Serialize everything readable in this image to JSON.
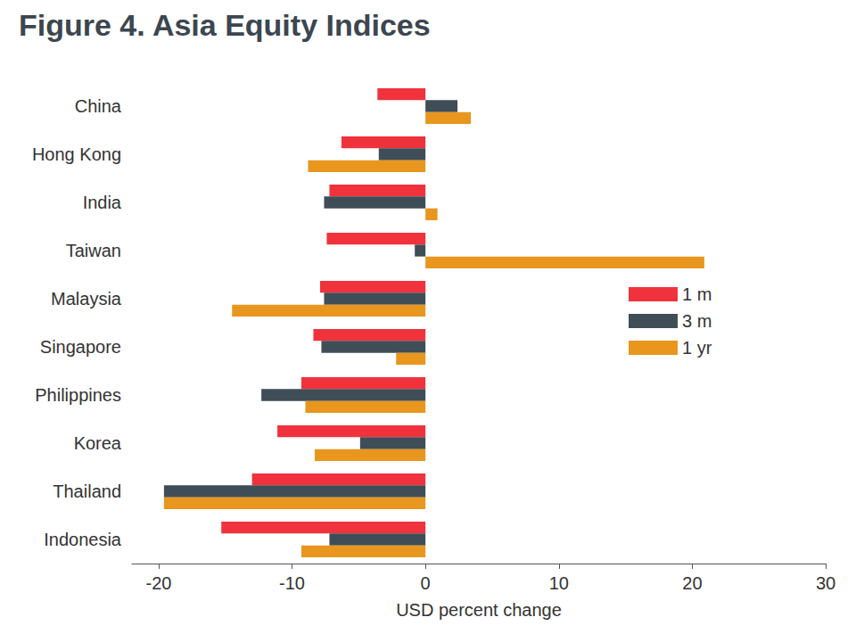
{
  "chart_data": {
    "type": "bar",
    "title": "Figure 4. Asia Equity Indices",
    "orientation": "horizontal",
    "categories": [
      "China",
      "Hong Kong",
      "India",
      "Taiwan",
      "Malaysia",
      "Singapore",
      "Philippines",
      "Korea",
      "Thailand",
      "Indonesia"
    ],
    "series": [
      {
        "name": "1 m",
        "color": "#f0323c",
        "values": [
          -3.6,
          -6.3,
          -7.2,
          -7.4,
          -7.9,
          -8.4,
          -9.3,
          -11.1,
          -13.0,
          -15.3
        ]
      },
      {
        "name": "3 m",
        "color": "#3f4d57",
        "values": [
          2.4,
          -3.5,
          -7.6,
          -0.8,
          -7.6,
          -7.8,
          -12.3,
          -4.9,
          -19.6,
          -7.2
        ]
      },
      {
        "name": "1 yr",
        "color": "#e8961e",
        "values": [
          3.4,
          -8.8,
          0.9,
          20.9,
          -14.5,
          -2.2,
          -9.0,
          -8.3,
          -19.6,
          -9.3
        ]
      }
    ],
    "xlabel": "USD percent change",
    "xlim": [
      -22,
      30
    ],
    "xticks": [
      -20,
      -10,
      0,
      10,
      20,
      30
    ],
    "grid": false,
    "legend": "right",
    "data_labels": false
  }
}
